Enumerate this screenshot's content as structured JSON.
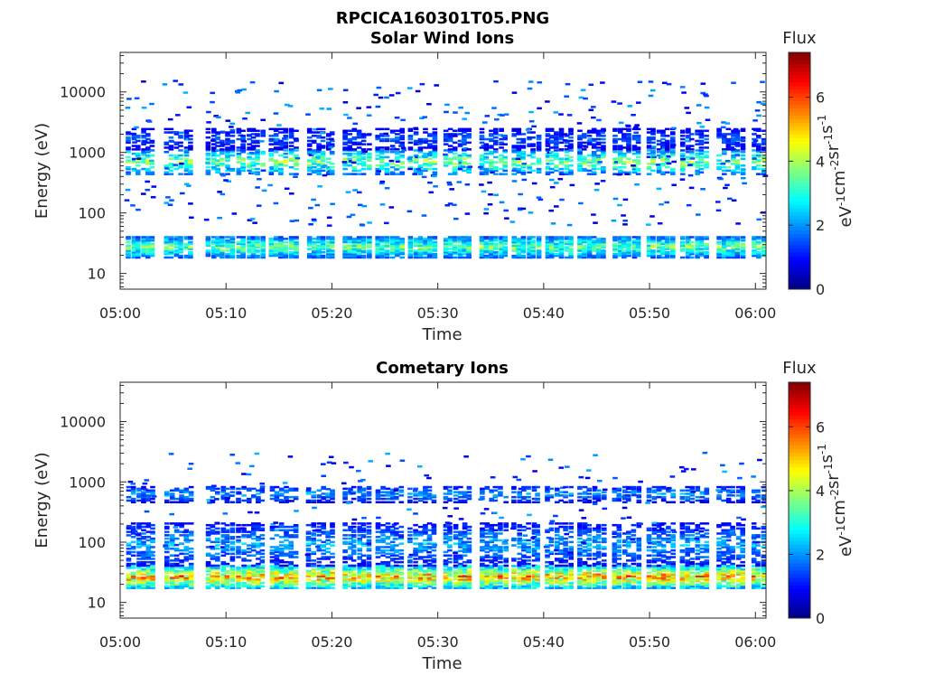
{
  "figure": {
    "title": "RPCICA160301T05.PNG"
  },
  "chart_data": [
    {
      "type": "heatmap",
      "title": "Solar Wind Ions",
      "xlabel": "Time",
      "ylabel": "Energy (eV)",
      "x_ticks": [
        "05:00",
        "05:10",
        "05:20",
        "05:30",
        "05:40",
        "05:50",
        "06:00"
      ],
      "xlim_minutes": [
        0,
        61
      ],
      "y_scale": "log",
      "y_ticks": [
        {
          "value": 10,
          "label": "10"
        },
        {
          "value": 100,
          "label": "100"
        },
        {
          "value": 1000,
          "label": "1000"
        },
        {
          "value": 10000,
          "label": "10000"
        }
      ],
      "ylim": [
        5.5,
        45000
      ],
      "colorbar": {
        "title": "Flux",
        "range": [
          0,
          7.4
        ],
        "ticks": [
          "0",
          "2",
          "4",
          "6"
        ],
        "label_base": "eV",
        "label_sups": [
          "-1",
          "-2",
          "-1",
          "-1"
        ],
        "label_parts": [
          "cm",
          "sr",
          "s"
        ],
        "colormap": "jet"
      },
      "scan_start_minutes": [
        0.6,
        4.2,
        8.1,
        11.0,
        14.1,
        17.6,
        21.0,
        24.1,
        27.2,
        30.5,
        33.9,
        37.0,
        40.1,
        43.2,
        46.5,
        49.7,
        52.9,
        56.3,
        59.6
      ],
      "bands": [
        {
          "energy_min": 18,
          "energy_max": 40,
          "flux_peak": 4.6
        },
        {
          "energy_min": 430,
          "energy_max": 1100,
          "flux_peak": 4.8
        },
        {
          "energy_min": 1100,
          "energy_max": 2500,
          "flux_peak": 2.0
        }
      ]
    },
    {
      "type": "heatmap",
      "title": "Cometary Ions",
      "xlabel": "Time",
      "ylabel": "Energy (eV)",
      "x_ticks": [
        "05:00",
        "05:10",
        "05:20",
        "05:30",
        "05:40",
        "05:50",
        "06:00"
      ],
      "xlim_minutes": [
        0,
        61
      ],
      "y_scale": "log",
      "y_ticks": [
        {
          "value": 10,
          "label": "10"
        },
        {
          "value": 100,
          "label": "100"
        },
        {
          "value": 1000,
          "label": "1000"
        },
        {
          "value": 10000,
          "label": "10000"
        }
      ],
      "ylim": [
        5.5,
        45000
      ],
      "colorbar": {
        "title": "Flux",
        "range": [
          0,
          7.4
        ],
        "ticks": [
          "0",
          "2",
          "4",
          "6"
        ],
        "label_base": "eV",
        "label_sups": [
          "-1",
          "-2",
          "-1",
          "-1"
        ],
        "label_parts": [
          "cm",
          "sr",
          "s"
        ],
        "colormap": "jet"
      },
      "scan_start_minutes": [
        0.6,
        4.2,
        8.1,
        11.0,
        14.1,
        17.6,
        21.0,
        24.1,
        27.2,
        30.5,
        33.9,
        37.0,
        40.1,
        43.2,
        46.5,
        49.7,
        52.9,
        56.3,
        59.6
      ],
      "bands": [
        {
          "energy_min": 17,
          "energy_max": 40,
          "flux_peak": 6.6
        },
        {
          "energy_min": 40,
          "energy_max": 200,
          "flux_peak": 2.8
        },
        {
          "energy_min": 450,
          "energy_max": 850,
          "flux_peak": 2.6
        }
      ]
    }
  ]
}
